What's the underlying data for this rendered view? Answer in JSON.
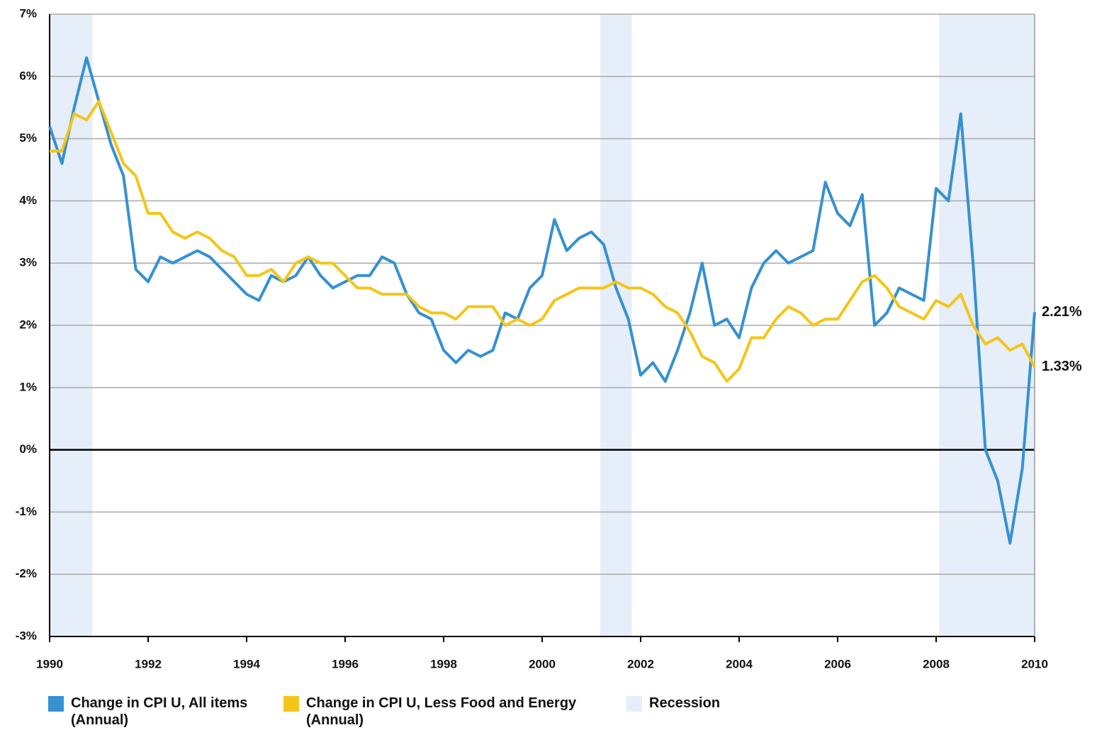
{
  "chart_data": {
    "type": "line",
    "x": [
      1990,
      1990.25,
      1990.5,
      1990.75,
      1991,
      1991.25,
      1991.5,
      1991.75,
      1992,
      1992.25,
      1992.5,
      1992.75,
      1993,
      1993.25,
      1993.5,
      1993.75,
      1994,
      1994.25,
      1994.5,
      1994.75,
      1995,
      1995.25,
      1995.5,
      1995.75,
      1996,
      1996.25,
      1996.5,
      1996.75,
      1997,
      1997.25,
      1997.5,
      1997.75,
      1998,
      1998.25,
      1998.5,
      1998.75,
      1999,
      1999.25,
      1999.5,
      1999.75,
      2000,
      2000.25,
      2000.5,
      2000.75,
      2001,
      2001.25,
      2001.5,
      2001.75,
      2002,
      2002.25,
      2002.5,
      2002.75,
      2003,
      2003.25,
      2003.5,
      2003.75,
      2004,
      2004.25,
      2004.5,
      2004.75,
      2005,
      2005.25,
      2005.5,
      2005.75,
      2006,
      2006.25,
      2006.5,
      2006.75,
      2007,
      2007.25,
      2007.5,
      2007.75,
      2008,
      2008.25,
      2008.5,
      2008.75,
      2009,
      2009.25,
      2009.5,
      2009.75,
      2010
    ],
    "series": [
      {
        "name": "Change in CPI U, All items (Annual)",
        "color": "#3591d1",
        "values": [
          5.2,
          4.6,
          5.5,
          6.3,
          5.6,
          4.9,
          4.4,
          2.9,
          2.7,
          3.1,
          3.0,
          3.1,
          3.2,
          3.1,
          2.9,
          2.7,
          2.5,
          2.4,
          2.8,
          2.7,
          2.8,
          3.1,
          2.8,
          2.6,
          2.7,
          2.8,
          2.8,
          3.1,
          3.0,
          2.5,
          2.2,
          2.1,
          1.6,
          1.4,
          1.6,
          1.5,
          1.6,
          2.2,
          2.1,
          2.6,
          2.8,
          3.7,
          3.2,
          3.4,
          3.5,
          3.3,
          2.6,
          2.1,
          1.2,
          1.4,
          1.1,
          1.6,
          2.2,
          3.0,
          2.0,
          2.1,
          1.8,
          2.6,
          3.0,
          3.2,
          3.0,
          3.1,
          3.2,
          4.3,
          3.8,
          3.6,
          4.1,
          2.0,
          2.2,
          2.6,
          2.5,
          2.4,
          4.2,
          4.0,
          5.4,
          3.0,
          0.0,
          -0.5,
          -1.5,
          -0.3,
          2.21
        ],
        "value_labels": [
          null,
          null,
          null,
          null,
          null,
          null,
          null,
          null,
          null,
          null,
          null,
          null,
          null,
          null,
          null,
          null,
          null,
          null,
          null,
          null,
          null,
          null,
          null,
          null,
          null,
          null,
          null,
          null,
          null,
          null,
          null,
          null,
          null,
          null,
          null,
          null,
          null,
          null,
          null,
          null,
          null,
          null,
          null,
          null,
          null,
          null,
          null,
          null,
          null,
          null,
          null,
          null,
          null,
          null,
          null,
          null,
          null,
          null,
          null,
          null,
          null,
          null,
          null,
          null,
          null,
          null,
          null,
          null,
          null,
          null,
          null,
          null,
          null,
          null,
          null,
          null,
          null,
          null,
          null,
          null,
          "2.21%"
        ]
      },
      {
        "name": "Change in CPI U, Less Food and Energy (Annual)",
        "color": "#f5c518",
        "values": [
          4.8,
          4.8,
          5.4,
          5.3,
          5.6,
          5.1,
          4.6,
          4.4,
          3.8,
          3.8,
          3.5,
          3.4,
          3.5,
          3.4,
          3.2,
          3.1,
          2.8,
          2.8,
          2.9,
          2.7,
          3.0,
          3.1,
          3.0,
          3.0,
          2.8,
          2.6,
          2.6,
          2.5,
          2.5,
          2.5,
          2.3,
          2.2,
          2.2,
          2.1,
          2.3,
          2.3,
          2.3,
          2.0,
          2.1,
          2.0,
          2.1,
          2.4,
          2.5,
          2.6,
          2.6,
          2.6,
          2.7,
          2.6,
          2.6,
          2.5,
          2.3,
          2.2,
          1.9,
          1.5,
          1.4,
          1.1,
          1.3,
          1.8,
          1.8,
          2.1,
          2.3,
          2.2,
          2.0,
          2.1,
          2.1,
          2.4,
          2.7,
          2.8,
          2.6,
          2.3,
          2.2,
          2.1,
          2.4,
          2.3,
          2.5,
          2.0,
          1.7,
          1.8,
          1.6,
          1.7,
          1.33
        ],
        "value_labels": [
          null,
          null,
          null,
          null,
          null,
          null,
          null,
          null,
          null,
          null,
          null,
          null,
          null,
          null,
          null,
          null,
          null,
          null,
          null,
          null,
          null,
          null,
          null,
          null,
          null,
          null,
          null,
          null,
          null,
          null,
          null,
          null,
          null,
          null,
          null,
          null,
          null,
          null,
          null,
          null,
          null,
          null,
          null,
          null,
          null,
          null,
          null,
          null,
          null,
          null,
          null,
          null,
          null,
          null,
          null,
          null,
          null,
          null,
          null,
          null,
          null,
          null,
          null,
          null,
          null,
          null,
          null,
          null,
          null,
          null,
          null,
          null,
          null,
          null,
          null,
          null,
          null,
          null,
          null,
          null,
          "1.33%"
        ]
      }
    ],
    "recessions": [
      {
        "start": 1990,
        "end": 1990.87
      },
      {
        "start": 2001.18,
        "end": 2001.82
      },
      {
        "start": 2008.06,
        "end": 2010
      }
    ],
    "recession_label": "Recession",
    "recession_color": "#e6eef9",
    "xlim": [
      1990,
      2010
    ],
    "xticks": [
      1990,
      1992,
      1994,
      1996,
      1998,
      2000,
      2002,
      2004,
      2006,
      2008,
      2010
    ],
    "ylim": [
      -3,
      7
    ],
    "yticks": [
      {
        "value": -3,
        "label": "-3%"
      },
      {
        "value": -2,
        "label": "-2%"
      },
      {
        "value": -1,
        "label": "-1%"
      },
      {
        "value": 0,
        "label": "0%"
      },
      {
        "value": 1,
        "label": "1%"
      },
      {
        "value": 2,
        "label": "2%"
      },
      {
        "value": 3,
        "label": "3%"
      },
      {
        "value": 4,
        "label": "4%"
      },
      {
        "value": 5,
        "label": "5%"
      },
      {
        "value": 6,
        "label": "6%"
      },
      {
        "value": 7,
        "label": "7%"
      }
    ],
    "grid": true
  }
}
